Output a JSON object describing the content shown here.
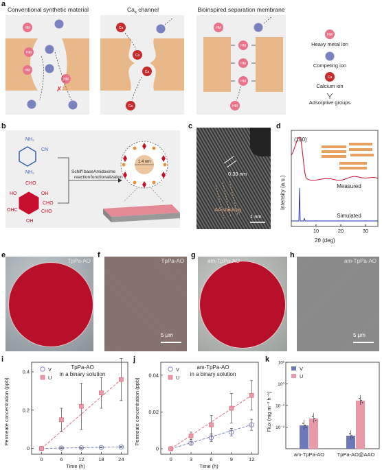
{
  "panel_a": {
    "label": "a",
    "titles": [
      "Conventional synthetic material",
      "Ca",
      "x",
      " channel",
      "Bioinspired separation membrane"
    ],
    "ion_hm": "HM",
    "ion_ca": "Ca",
    "legend": [
      "Heavy metal ion",
      "Competing ion",
      "Calcium ion",
      "Adsorptive groups"
    ]
  },
  "panel_b": {
    "label": "b",
    "amine_groups": [
      "NH₂",
      "CN",
      "NH₂"
    ],
    "aldehyde_groups": [
      "CHO",
      "OH",
      "CHO",
      "HO",
      "OHC",
      "CHO",
      "OH"
    ],
    "step1": [
      "Schiff base",
      "reaction"
    ],
    "step2": [
      "Amidoxime",
      "functionalization"
    ],
    "pore": "1.4 nm"
  },
  "panel_c": {
    "label": "c",
    "spacing": "0.33 nm",
    "annotation": "AA stacking",
    "scale": "1 nm"
  },
  "panel_d": {
    "label": "d",
    "peak": "(100)",
    "measured": "Measured",
    "simulated": "Simulated",
    "ylabel": "Intensity (a.u.)",
    "xlabel": "2θ (deg)",
    "xticks": [
      "10",
      "20",
      "30"
    ]
  },
  "panel_efgh": {
    "labels": [
      "e",
      "f",
      "g",
      "h"
    ],
    "names": [
      "TpPa-AO",
      "TpPa-AO",
      "am-TpPa-AO",
      "am-TpPa-AO"
    ],
    "scale": "5 μm"
  },
  "panel_i": {
    "label": "i",
    "ylabel": "Permeate concentration (ppb)",
    "xlabel": "Time (h)",
    "legend_v": "V",
    "legend_u": "U",
    "caption": [
      "TpPa-AO",
      "in a binary solution"
    ]
  },
  "panel_j": {
    "label": "j",
    "ylabel": "Permeate concentration (ppb)",
    "xlabel": "Time (h)",
    "legend_v": "V",
    "legend_u": "U",
    "caption": [
      "am-TpPa-AO",
      "in a binary solution"
    ]
  },
  "panel_k": {
    "label": "k",
    "ylabel": "Flux (mg m⁻² h⁻¹)",
    "legend_v": "V",
    "legend_u": "U",
    "yticks": [
      "10⁻²",
      "10⁻¹",
      "10⁰",
      "10¹"
    ]
  },
  "colors": {
    "hm": "#e8738a",
    "comp": "#7b82c0",
    "ca": "#c62c2c",
    "membrane": "#e8b888",
    "u": "#e0607a",
    "v": "#6d78b8",
    "red_disc": "#b8102a"
  },
  "chart_data": [
    {
      "id": "i",
      "type": "line",
      "x": [
        0,
        6,
        12,
        18,
        24
      ],
      "series": [
        {
          "name": "V",
          "values": [
            0.0,
            0.002,
            0.003,
            0.005,
            0.008
          ],
          "err": [
            0.0,
            0.002,
            0.002,
            0.002,
            0.003
          ]
        },
        {
          "name": "U",
          "values": [
            0.0,
            0.15,
            0.22,
            0.29,
            0.36
          ],
          "err": [
            0.0,
            0.06,
            0.12,
            0.08,
            0.11
          ]
        }
      ],
      "xticks": [
        0,
        6,
        12,
        18,
        24
      ],
      "yticks": [
        0,
        0.2,
        0.4
      ],
      "xlim": [
        -3,
        26
      ],
      "ylim": [
        -0.03,
        0.45
      ]
    },
    {
      "id": "j",
      "type": "line",
      "x": [
        0,
        3,
        6,
        9,
        12
      ],
      "series": [
        {
          "name": "V",
          "values": [
            0.0,
            0.003,
            0.006,
            0.009,
            0.013
          ],
          "err": [
            0.0,
            0.001,
            0.002,
            0.002,
            0.003
          ]
        },
        {
          "name": "U",
          "values": [
            0.0,
            0.007,
            0.013,
            0.022,
            0.029
          ],
          "err": [
            0.0,
            0.002,
            0.005,
            0.008,
            0.008
          ]
        }
      ],
      "xticks": [
        0,
        3,
        6,
        9,
        12
      ],
      "yticks": [
        0,
        0.02,
        0.04
      ],
      "xlim": [
        -1.5,
        13
      ],
      "ylim": [
        -0.003,
        0.047
      ]
    },
    {
      "id": "k",
      "type": "bar",
      "log_y": true,
      "categories": [
        "am-TpPa-AO",
        "TpPa-AO@AAO"
      ],
      "series": [
        {
          "name": "V",
          "values": [
            0.012,
            0.004
          ]
        },
        {
          "name": "U",
          "values": [
            0.025,
            0.17
          ]
        }
      ],
      "ylim": [
        0.001,
        10
      ]
    }
  ]
}
